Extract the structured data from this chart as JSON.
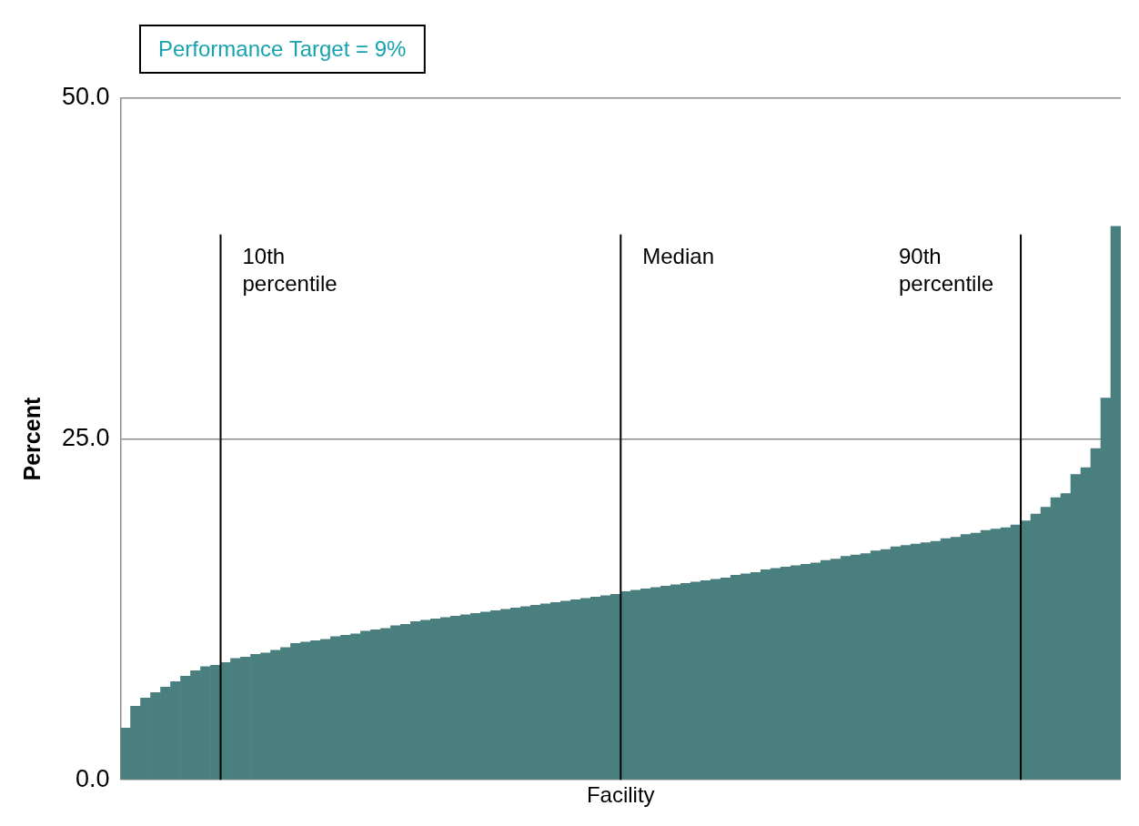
{
  "chart_data": {
    "type": "bar",
    "xlabel": "Facility",
    "ylabel": "Percent",
    "annotations": [
      "Performance Target = 9%"
    ],
    "x": [
      0.5,
      1.5,
      2.5,
      3.5,
      4.5,
      5.5,
      6.5,
      7.5,
      8.5,
      9.5,
      10.5,
      11.5,
      12.5,
      13.5,
      14.5,
      15.5,
      16.5,
      17.5,
      18.5,
      19.5,
      20.5,
      21.5,
      22.5,
      23.5,
      24.5,
      25.5,
      26.5,
      27.5,
      28.5,
      29.5,
      30.5,
      31.5,
      32.5,
      33.5,
      34.5,
      35.5,
      36.5,
      37.5,
      38.5,
      39.5,
      40.5,
      41.5,
      42.5,
      43.5,
      44.5,
      45.5,
      46.5,
      47.5,
      48.5,
      49.5,
      50.5,
      51.5,
      52.5,
      53.5,
      54.5,
      55.5,
      56.5,
      57.5,
      58.5,
      59.5,
      60.5,
      61.5,
      62.5,
      63.5,
      64.5,
      65.5,
      66.5,
      67.5,
      68.5,
      69.5,
      70.5,
      71.5,
      72.5,
      73.5,
      74.5,
      75.5,
      76.5,
      77.5,
      78.5,
      79.5,
      80.5,
      81.5,
      82.5,
      83.5,
      84.5,
      85.5,
      86.5,
      87.5,
      88.5,
      89.5,
      90.5,
      91.5,
      92.5,
      93.5,
      94.5,
      95.5,
      96.5,
      97.5,
      98.5,
      99.5
    ],
    "values": [
      3.8,
      5.4,
      6.0,
      6.4,
      6.8,
      7.2,
      7.6,
      8.0,
      8.3,
      8.4,
      8.6,
      8.9,
      9.0,
      9.2,
      9.3,
      9.5,
      9.7,
      10.0,
      10.1,
      10.2,
      10.3,
      10.5,
      10.6,
      10.7,
      10.9,
      11.0,
      11.1,
      11.3,
      11.4,
      11.6,
      11.7,
      11.8,
      11.9,
      12.0,
      12.1,
      12.2,
      12.3,
      12.4,
      12.5,
      12.6,
      12.7,
      12.8,
      12.9,
      13.0,
      13.1,
      13.2,
      13.3,
      13.4,
      13.5,
      13.6,
      13.8,
      13.9,
      14.0,
      14.1,
      14.2,
      14.3,
      14.4,
      14.5,
      14.6,
      14.7,
      14.8,
      15.0,
      15.1,
      15.2,
      15.4,
      15.5,
      15.6,
      15.7,
      15.8,
      15.9,
      16.1,
      16.2,
      16.4,
      16.5,
      16.6,
      16.8,
      16.9,
      17.1,
      17.2,
      17.3,
      17.4,
      17.5,
      17.7,
      17.8,
      18.0,
      18.1,
      18.3,
      18.4,
      18.5,
      18.7,
      19.0,
      19.5,
      20.0,
      20.7,
      21.0,
      22.4,
      22.9,
      24.3,
      28.0,
      40.6
    ],
    "color": "#4a7f7f",
    "xlim": [
      0,
      100
    ],
    "ylim": [
      0,
      50
    ],
    "yticks": [
      {
        "value": 0,
        "label": "0.0"
      },
      {
        "value": 25,
        "label": "25.0"
      },
      {
        "value": 50,
        "label": "50.0"
      }
    ],
    "tick_labels": "y",
    "grid": "y",
    "ref_lines": [
      {
        "axis": "x",
        "value": 10,
        "label": "10th percentile",
        "color": "#000000"
      },
      {
        "axis": "x",
        "value": 50,
        "label": "Median",
        "color": "#000000"
      },
      {
        "axis": "x",
        "value": 90,
        "label": "90th percentile",
        "color": "#000000"
      }
    ]
  }
}
